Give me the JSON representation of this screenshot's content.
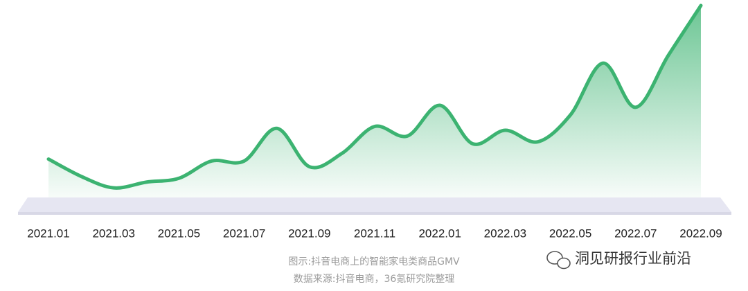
{
  "chart_data": {
    "type": "area",
    "categories": [
      "2021.01",
      null,
      "2021.03",
      null,
      "2021.05",
      null,
      "2021.07",
      null,
      "2021.09",
      null,
      "2021.11",
      null,
      "2022.01",
      null,
      "2022.03",
      null,
      "2022.05",
      null,
      "2022.07",
      null,
      "2022.09"
    ],
    "values": [
      20,
      11,
      5,
      8,
      10,
      19,
      19,
      36,
      16,
      23,
      37,
      32,
      48,
      28,
      35,
      29,
      43,
      70,
      47,
      74,
      100
    ],
    "color": "#3cb371",
    "ylim": [
      0,
      100
    ],
    "caption": "图示:抖音电商上的智能家电类商品GMV",
    "source": "数据来源:抖音电商，36氪研究院整理",
    "watermark": "洞见研报行业前沿"
  }
}
